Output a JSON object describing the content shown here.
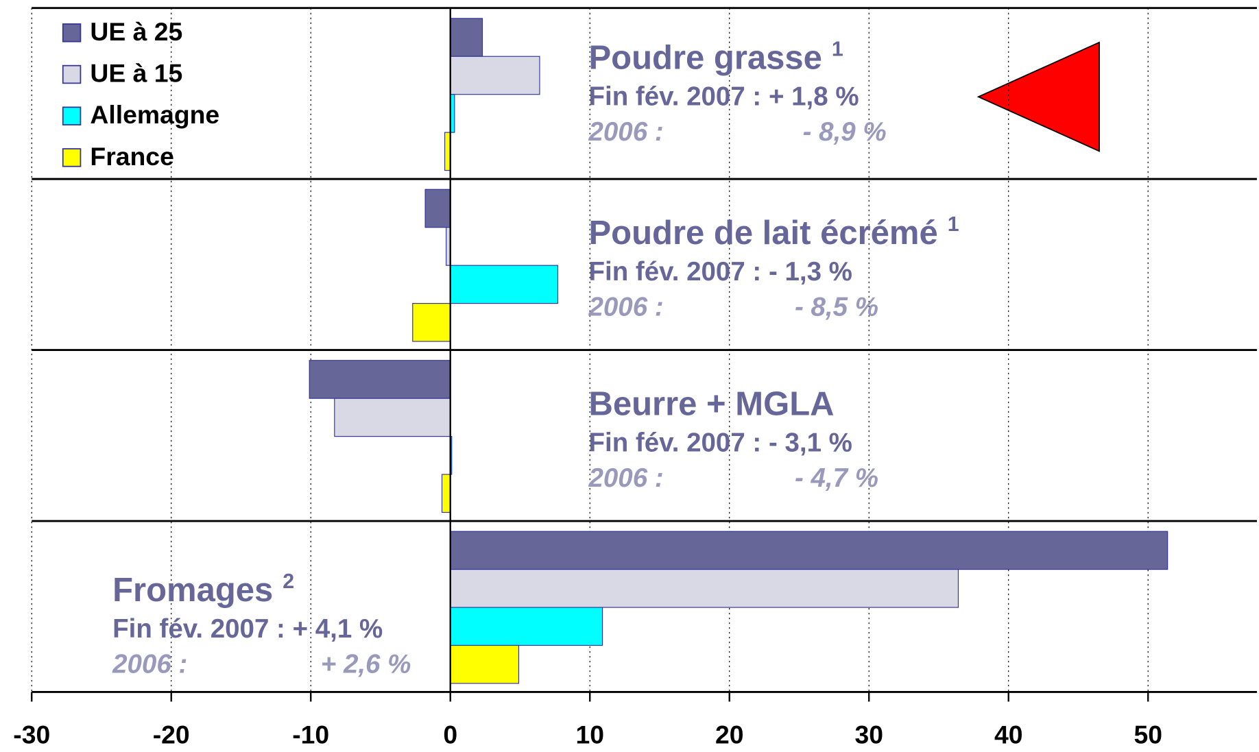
{
  "chart_data": {
    "type": "barh",
    "categories": [
      "Poudre grasse",
      "Poudre de lait écrémé",
      "Beurre + MGLA",
      "Fromages"
    ],
    "series": [
      {
        "name": "UE à 25",
        "color": "#666699",
        "values": [
          2.3,
          -1.8,
          -10.1,
          51.4
        ]
      },
      {
        "name": "UE à 15",
        "color": "#d9d9e6",
        "values": [
          6.4,
          -0.3,
          -8.3,
          36.4
        ]
      },
      {
        "name": "Allemagne",
        "color": "#00ffff",
        "values": [
          0.3,
          7.7,
          0.1,
          10.9
        ]
      },
      {
        "name": "France",
        "color": "#ffff00",
        "values": [
          -0.4,
          -2.7,
          -0.6,
          4.9
        ]
      }
    ],
    "annotations": [
      {
        "note": "1",
        "line1": "Fin fév. 2007 : + 1,8 %",
        "label2": "2006 :",
        "value2": "- 8,9 %"
      },
      {
        "note": "1",
        "line1": "Fin fév. 2007 : - 1,3 %",
        "label2": "2006 :",
        "value2": "- 8,5 %"
      },
      {
        "line1": "Fin fév. 2007 : - 3,1 %",
        "label2": "2006 :",
        "value2": "- 4,7 %"
      },
      {
        "note": "2",
        "line1": "Fin fév. 2007 : + 4,1 %",
        "label2": "2006 :",
        "value2": "+ 2,6 %"
      }
    ],
    "xlim": [
      -30,
      57.8
    ],
    "xticks": [
      -30,
      -20,
      -10,
      0,
      10,
      20,
      30,
      40,
      50
    ],
    "grid": true,
    "legend": "top-left"
  }
}
